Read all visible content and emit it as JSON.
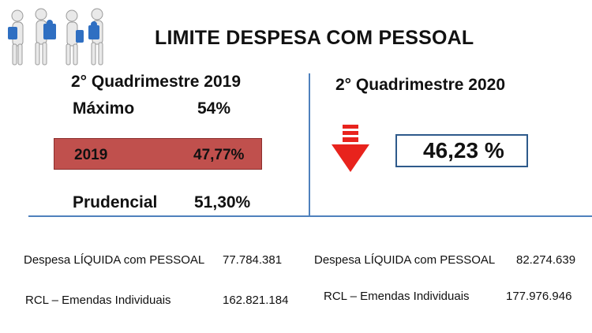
{
  "header": {
    "title": "LIMITE DESPESA COM PESSOAL",
    "illustration": "people-puzzle-illustration"
  },
  "left_panel": {
    "period": "2° Quadrimestre 2019",
    "maximo_label": "Máximo",
    "maximo_value": "54%",
    "highlight": {
      "year": "2019",
      "value": "47,77%",
      "color": "#c0504d"
    },
    "prudencial_label": "Prudencial",
    "prudencial_value": "51,30%"
  },
  "right_panel": {
    "period": "2° Quadrimestre 2020",
    "indicator_icon": "red-down-arrow-icon",
    "indicator_color": "#e8231d",
    "value": "46,23 %"
  },
  "left_footer": {
    "despesa_label": "Despesa LÍQUIDA com PESSOAL",
    "despesa_value": "77.784.381",
    "rcl_label": "RCL – Emendas Individuais",
    "rcl_value": "162.821.184"
  },
  "right_footer": {
    "despesa_label": "Despesa LÍQUIDA com PESSOAL",
    "despesa_value": "82.274.639",
    "rcl_label": "RCL – Emendas Individuais",
    "rcl_value": "177.976.946"
  },
  "colors": {
    "divider": "#4f81bd",
    "box_border": "#2e5a8b"
  }
}
